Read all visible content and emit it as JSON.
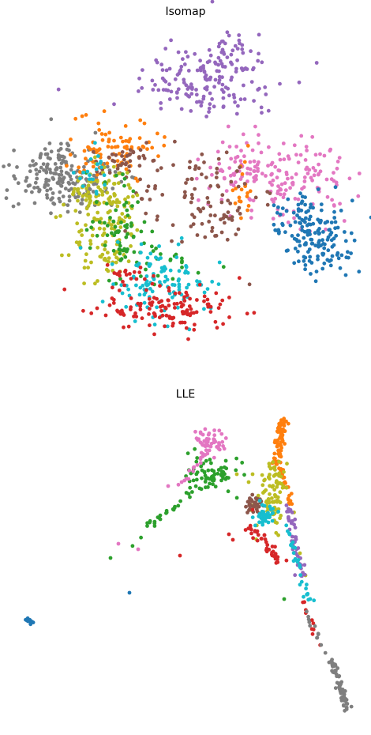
{
  "chart_data": [
    {
      "type": "scatter",
      "title": "Isomap",
      "grid": false,
      "axes_visible": false,
      "series": [
        {
          "color": "#9467bd",
          "clusters": [
            [
              268,
              100,
              48,
              28,
              120
            ],
            [
              240,
              110,
              30,
              18,
              40
            ],
            [
              300,
              65,
              20,
              15,
              25
            ]
          ]
        },
        {
          "color": "#e377c2",
          "clusters": [
            [
              355,
              225,
              42,
              28,
              170
            ],
            [
              305,
              205,
              14,
              14,
              20
            ]
          ]
        },
        {
          "color": "#1f77b4",
          "clusters": [
            [
              403,
              300,
              24,
              22,
              140
            ],
            [
              380,
              272,
              16,
              12,
              30
            ]
          ]
        },
        {
          "color": "#7f7f7f",
          "clusters": [
            [
              80,
              228,
              30,
              20,
              170
            ],
            [
              70,
              198,
              22,
              10,
              25
            ]
          ]
        },
        {
          "color": "#ff7f0e",
          "clusters": [
            [
              150,
              185,
              26,
              18,
              70
            ],
            [
              115,
              200,
              12,
              10,
              20
            ],
            [
              305,
              250,
              10,
              25,
              20
            ]
          ]
        },
        {
          "color": "#8c564b",
          "clusters": [
            [
              160,
              205,
              20,
              12,
              40
            ],
            [
              250,
              250,
              40,
              32,
              80
            ],
            [
              290,
              270,
              14,
              20,
              20
            ]
          ]
        },
        {
          "color": "#bcbd22",
          "clusters": [
            [
              135,
              280,
              24,
              38,
              160
            ],
            [
              115,
              245,
              10,
              12,
              20
            ]
          ]
        },
        {
          "color": "#2ca02c",
          "clusters": [
            [
              150,
              290,
              20,
              30,
              60
            ],
            [
              200,
              330,
              26,
              18,
              30
            ]
          ]
        },
        {
          "color": "#17becf",
          "clusters": [
            [
              205,
              360,
              32,
              22,
              110
            ],
            [
              120,
              210,
              12,
              14,
              20
            ]
          ]
        },
        {
          "color": "#d62728",
          "clusters": [
            [
              212,
              392,
              44,
              14,
              130
            ],
            [
              160,
              350,
              12,
              10,
              20
            ]
          ]
        }
      ]
    },
    {
      "type": "scatter",
      "title": "LLE",
      "grid": false,
      "axes_visible": false,
      "series": [
        {
          "color": "#1f77b4",
          "clusters": [
            [
              37,
              785,
              3,
              2,
              12
            ]
          ],
          "points": [
            [
              164,
              750
            ]
          ]
        },
        {
          "color": "#2ca02c",
          "clusters": [
            [
              270,
              600,
              20,
              12,
              60
            ]
          ],
          "lines": [
            [
              [
                290,
                585
              ],
              [
                170,
                680
              ],
              3,
              40
            ]
          ],
          "points": [
            [
              140,
              706
            ],
            [
              360,
              758
            ]
          ]
        },
        {
          "color": "#e377c2",
          "clusters": [
            [
              265,
              560,
              10,
              8,
              50
            ]
          ],
          "lines": [
            [
              [
                258,
                578
              ],
              [
                230,
                612
              ],
              2,
              15
            ]
          ],
          "points": [
            [
              150,
              688
            ],
            [
              175,
              695
            ],
            [
              213,
              615
            ]
          ]
        },
        {
          "color": "#ff7f0e",
          "lines": [
            [
              [
                358,
                532
              ],
              [
                350,
                590
              ],
              3,
              70
            ],
            [
              [
                355,
                590
              ],
              [
                368,
                640
              ],
              2,
              25
            ]
          ]
        },
        {
          "color": "#bcbd22",
          "clusters": [
            [
              345,
              625,
              10,
              20,
              90
            ]
          ],
          "points": [
            [
              300,
              600
            ],
            [
              320,
              600
            ],
            [
              315,
              610
            ],
            [
              380,
              700
            ],
            [
              387,
              728
            ]
          ]
        },
        {
          "color": "#8c564b",
          "clusters": [
            [
              322,
              640,
              7,
              6,
              35
            ]
          ]
        },
        {
          "color": "#9467bd",
          "lines": [
            [
              [
                365,
                640
              ],
              [
                385,
                740
              ],
              3,
              50
            ]
          ]
        },
        {
          "color": "#17becf",
          "clusters": [
            [
              335,
              652,
              9,
              7,
              40
            ]
          ],
          "lines": [
            [
              [
                360,
                655
              ],
              [
                390,
                760
              ],
              3,
              30
            ]
          ]
        },
        {
          "color": "#d62728",
          "lines": [
            [
              [
                315,
                665
              ],
              [
                360,
                715
              ],
              3,
              40
            ],
            [
              [
                385,
                760
              ],
              [
                410,
                825
              ],
              2,
              10
            ]
          ],
          "points": [
            [
              228,
              703
            ],
            [
              290,
              676
            ],
            [
              295,
              683
            ],
            [
              320,
              645
            ]
          ]
        },
        {
          "color": "#7f7f7f",
          "lines": [
            [
              [
                420,
                835
              ],
              [
                440,
                897
              ],
              2,
              70
            ],
            [
              [
                385,
                770
              ],
              [
                415,
                830
              ],
              2,
              12
            ]
          ]
        }
      ]
    }
  ]
}
